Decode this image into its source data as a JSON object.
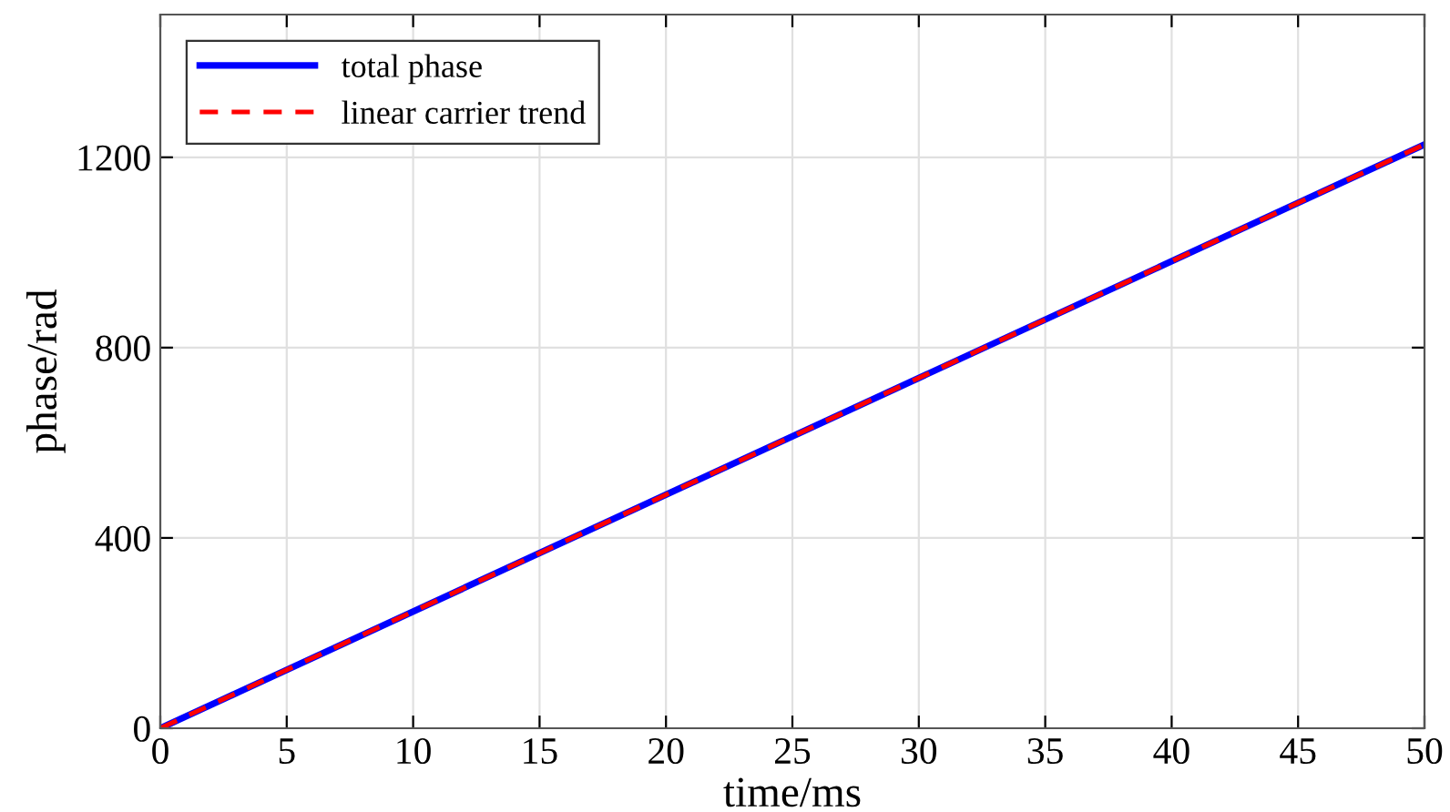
{
  "chart_data": {
    "type": "line",
    "xlabel": "time/ms",
    "ylabel": "phase/rad",
    "x": [
      0,
      50
    ],
    "series": [
      {
        "name": "total phase",
        "color": "#0000ff",
        "values": [
          0,
          1227
        ],
        "line_style": "solid"
      },
      {
        "name": "linear carrier trend",
        "color": "#ff0000",
        "values": [
          0,
          1227
        ],
        "line_style": "dashed"
      }
    ],
    "xlim": [
      0,
      50
    ],
    "ylim": [
      0,
      1500
    ],
    "xticks": [
      0,
      5,
      10,
      15,
      20,
      25,
      30,
      35,
      40,
      45,
      50
    ],
    "yticks": [
      0,
      400,
      800,
      1200
    ],
    "grid": true,
    "legend": "top left"
  }
}
